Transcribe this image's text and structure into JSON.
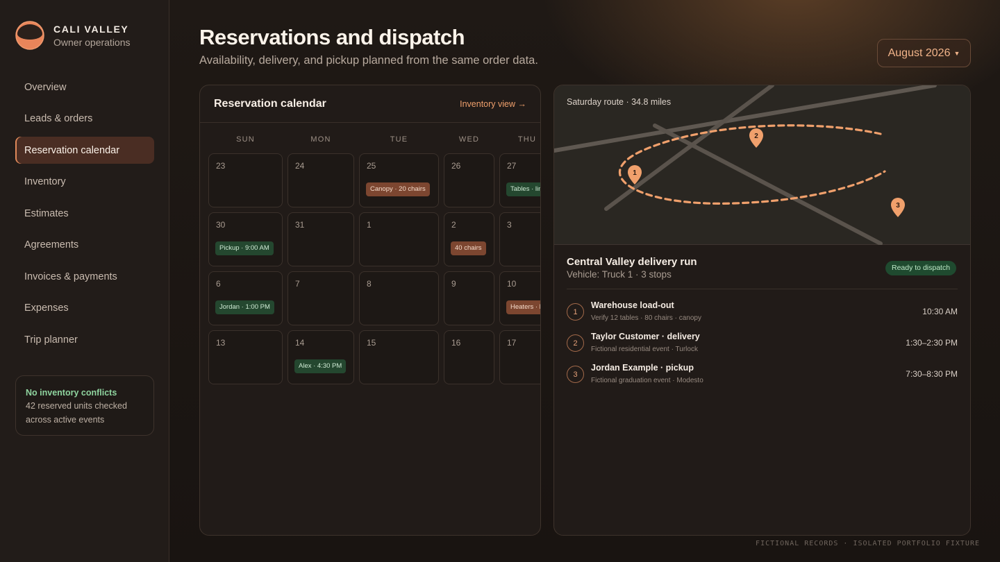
{
  "brand": {
    "name": "CALI VALLEY",
    "subtitle": "Owner operations"
  },
  "sidebar": {
    "items": [
      {
        "label": "Overview"
      },
      {
        "label": "Leads & orders"
      },
      {
        "label": "Reservation calendar",
        "active": true
      },
      {
        "label": "Inventory"
      },
      {
        "label": "Estimates"
      },
      {
        "label": "Agreements"
      },
      {
        "label": "Invoices & payments"
      },
      {
        "label": "Expenses"
      },
      {
        "label": "Trip planner"
      }
    ],
    "status_card": {
      "title": "No inventory conflicts",
      "body": "42 reserved units checked across active events"
    }
  },
  "header": {
    "title": "Reservations and dispatch",
    "subtitle": "Availability, delivery, and pickup planned from the same order data.",
    "month_selector": "August 2026"
  },
  "calendar": {
    "title": "Reservation calendar",
    "link": "Inventory view →",
    "weekdays": [
      "SUN",
      "MON",
      "TUE",
      "WED",
      "THU"
    ],
    "weeks": [
      [
        {
          "day": "23"
        },
        {
          "day": "24"
        },
        {
          "day": "25",
          "event": "Canopy · 20 chairs",
          "tone": "orange"
        },
        {
          "day": "26"
        },
        {
          "day": "27",
          "event": "Tables · linens",
          "tone": "green"
        }
      ],
      [
        {
          "day": "30",
          "event": "Pickup · 9:00 AM",
          "tone": "green"
        },
        {
          "day": "31"
        },
        {
          "day": "1"
        },
        {
          "day": "2",
          "event": "40 chairs",
          "tone": "orange"
        },
        {
          "day": "3"
        }
      ],
      [
        {
          "day": "6",
          "event": "Jordan · 1:00 PM",
          "tone": "green"
        },
        {
          "day": "7"
        },
        {
          "day": "8"
        },
        {
          "day": "9"
        },
        {
          "day": "10",
          "event": "Heaters · lights",
          "tone": "orange"
        }
      ],
      [
        {
          "day": "13"
        },
        {
          "day": "14",
          "event": "Alex · 4:30 PM",
          "tone": "green"
        },
        {
          "day": "15"
        },
        {
          "day": "16"
        },
        {
          "day": "17"
        }
      ]
    ]
  },
  "dispatch": {
    "route_label": "Saturday route · 34.8 miles",
    "run_title": "Central Valley delivery run",
    "run_subtitle": "Vehicle: Truck 1 · 3 stops",
    "status": "Ready to dispatch",
    "map_pins": [
      "1",
      "2",
      "3"
    ],
    "stops": [
      {
        "num": "1",
        "title": "Warehouse load-out",
        "desc": "Verify 12 tables · 80 chairs · canopy",
        "time": "10:30 AM"
      },
      {
        "num": "2",
        "title": "Taylor Customer · delivery",
        "desc": "Fictional residential event · Turlock",
        "time": "1:30–2:30 PM"
      },
      {
        "num": "3",
        "title": "Jordan Example · pickup",
        "desc": "Fictional graduation event · Modesto",
        "time": "7:30–8:30 PM"
      }
    ]
  },
  "footer": {
    "note": "FICTIONAL RECORDS · ISOLATED PORTFOLIO FIXTURE"
  },
  "colors": {
    "accent": "#f0a06c",
    "success": "#8fd49f",
    "active_nav": "#4a2d23"
  }
}
